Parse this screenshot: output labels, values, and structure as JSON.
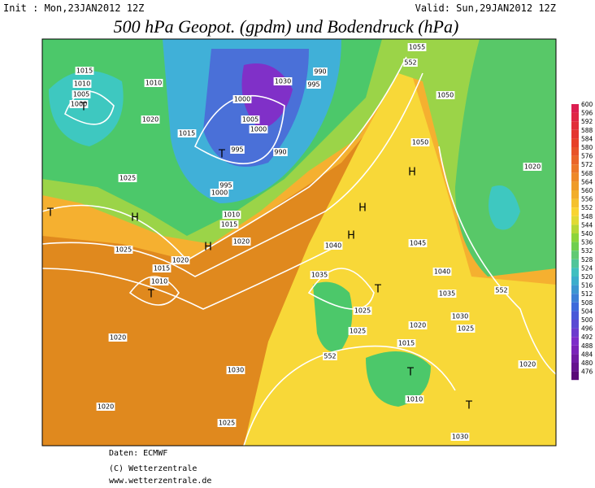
{
  "header": {
    "init": "Init : Mon,23JAN2012 12Z",
    "valid": "Valid: Sun,29JAN2012 12Z",
    "title": "500 hPa Geopot. (gpdm) und Bodendruck (hPa)"
  },
  "colorbar": {
    "labels": [
      "600",
      "596",
      "592",
      "588",
      "584",
      "580",
      "576",
      "572",
      "568",
      "564",
      "560",
      "556",
      "552",
      "548",
      "544",
      "540",
      "536",
      "532",
      "528",
      "524",
      "520",
      "516",
      "512",
      "508",
      "504",
      "500",
      "496",
      "492",
      "488",
      "484",
      "480",
      "476"
    ]
  },
  "map_labels": [
    "1015",
    "1010",
    "1005",
    "1000",
    "1020",
    "1025",
    "1025",
    "1010",
    "1015",
    "1005",
    "1000",
    "995",
    "990",
    "1000",
    "995",
    "1030",
    "990",
    "1000",
    "995",
    "1010",
    "1015",
    "1020",
    "1050",
    "1050",
    "1055",
    "1040",
    "1045",
    "1040",
    "1035",
    "1030",
    "1025",
    "1020",
    "1030",
    "1020",
    "1025",
    "1020",
    "1015",
    "1010",
    "1010",
    "1020",
    "1020",
    "1020",
    "1015",
    "1025",
    "1035",
    "1030",
    "1025",
    "552",
    "552",
    "552",
    "H",
    "H",
    "H",
    "H",
    "H",
    "T",
    "T",
    "T",
    "T",
    "T",
    "T",
    "T"
  ],
  "footer": {
    "source": "Daten: ECMWF",
    "copyright": "(C) Wetterzentrale",
    "url": "www.wetterzentrale.de"
  }
}
